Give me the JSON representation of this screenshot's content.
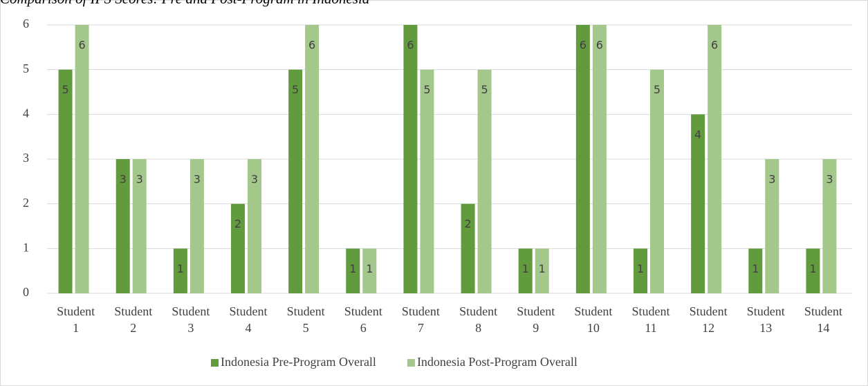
{
  "chart_data": {
    "type": "bar",
    "title": "Comparison of IPS Scores: Pre and Post-Program in Indonesia",
    "categories": [
      "Student 1",
      "Student 2",
      "Student 3",
      "Student 4",
      "Student 5",
      "Student 6",
      "Student 7",
      "Student 8",
      "Student 9",
      "Student 10",
      "Student 11",
      "Student 12",
      "Student 13",
      "Student 14"
    ],
    "series": [
      {
        "name": "Indonesia Pre-Program Overall",
        "color": "#629b3d",
        "values": [
          5,
          3,
          1,
          2,
          5,
          1,
          6,
          2,
          1,
          6,
          1,
          4,
          1,
          1
        ]
      },
      {
        "name": "Indonesia Post-Program Overall",
        "color": "#a4c78b",
        "values": [
          6,
          3,
          3,
          3,
          6,
          1,
          5,
          5,
          1,
          6,
          5,
          6,
          3,
          3
        ]
      }
    ],
    "ylim": [
      0,
      6
    ],
    "yticks": [
      0,
      1,
      2,
      3,
      4,
      5,
      6
    ],
    "grid": true,
    "legend": "bottom"
  }
}
